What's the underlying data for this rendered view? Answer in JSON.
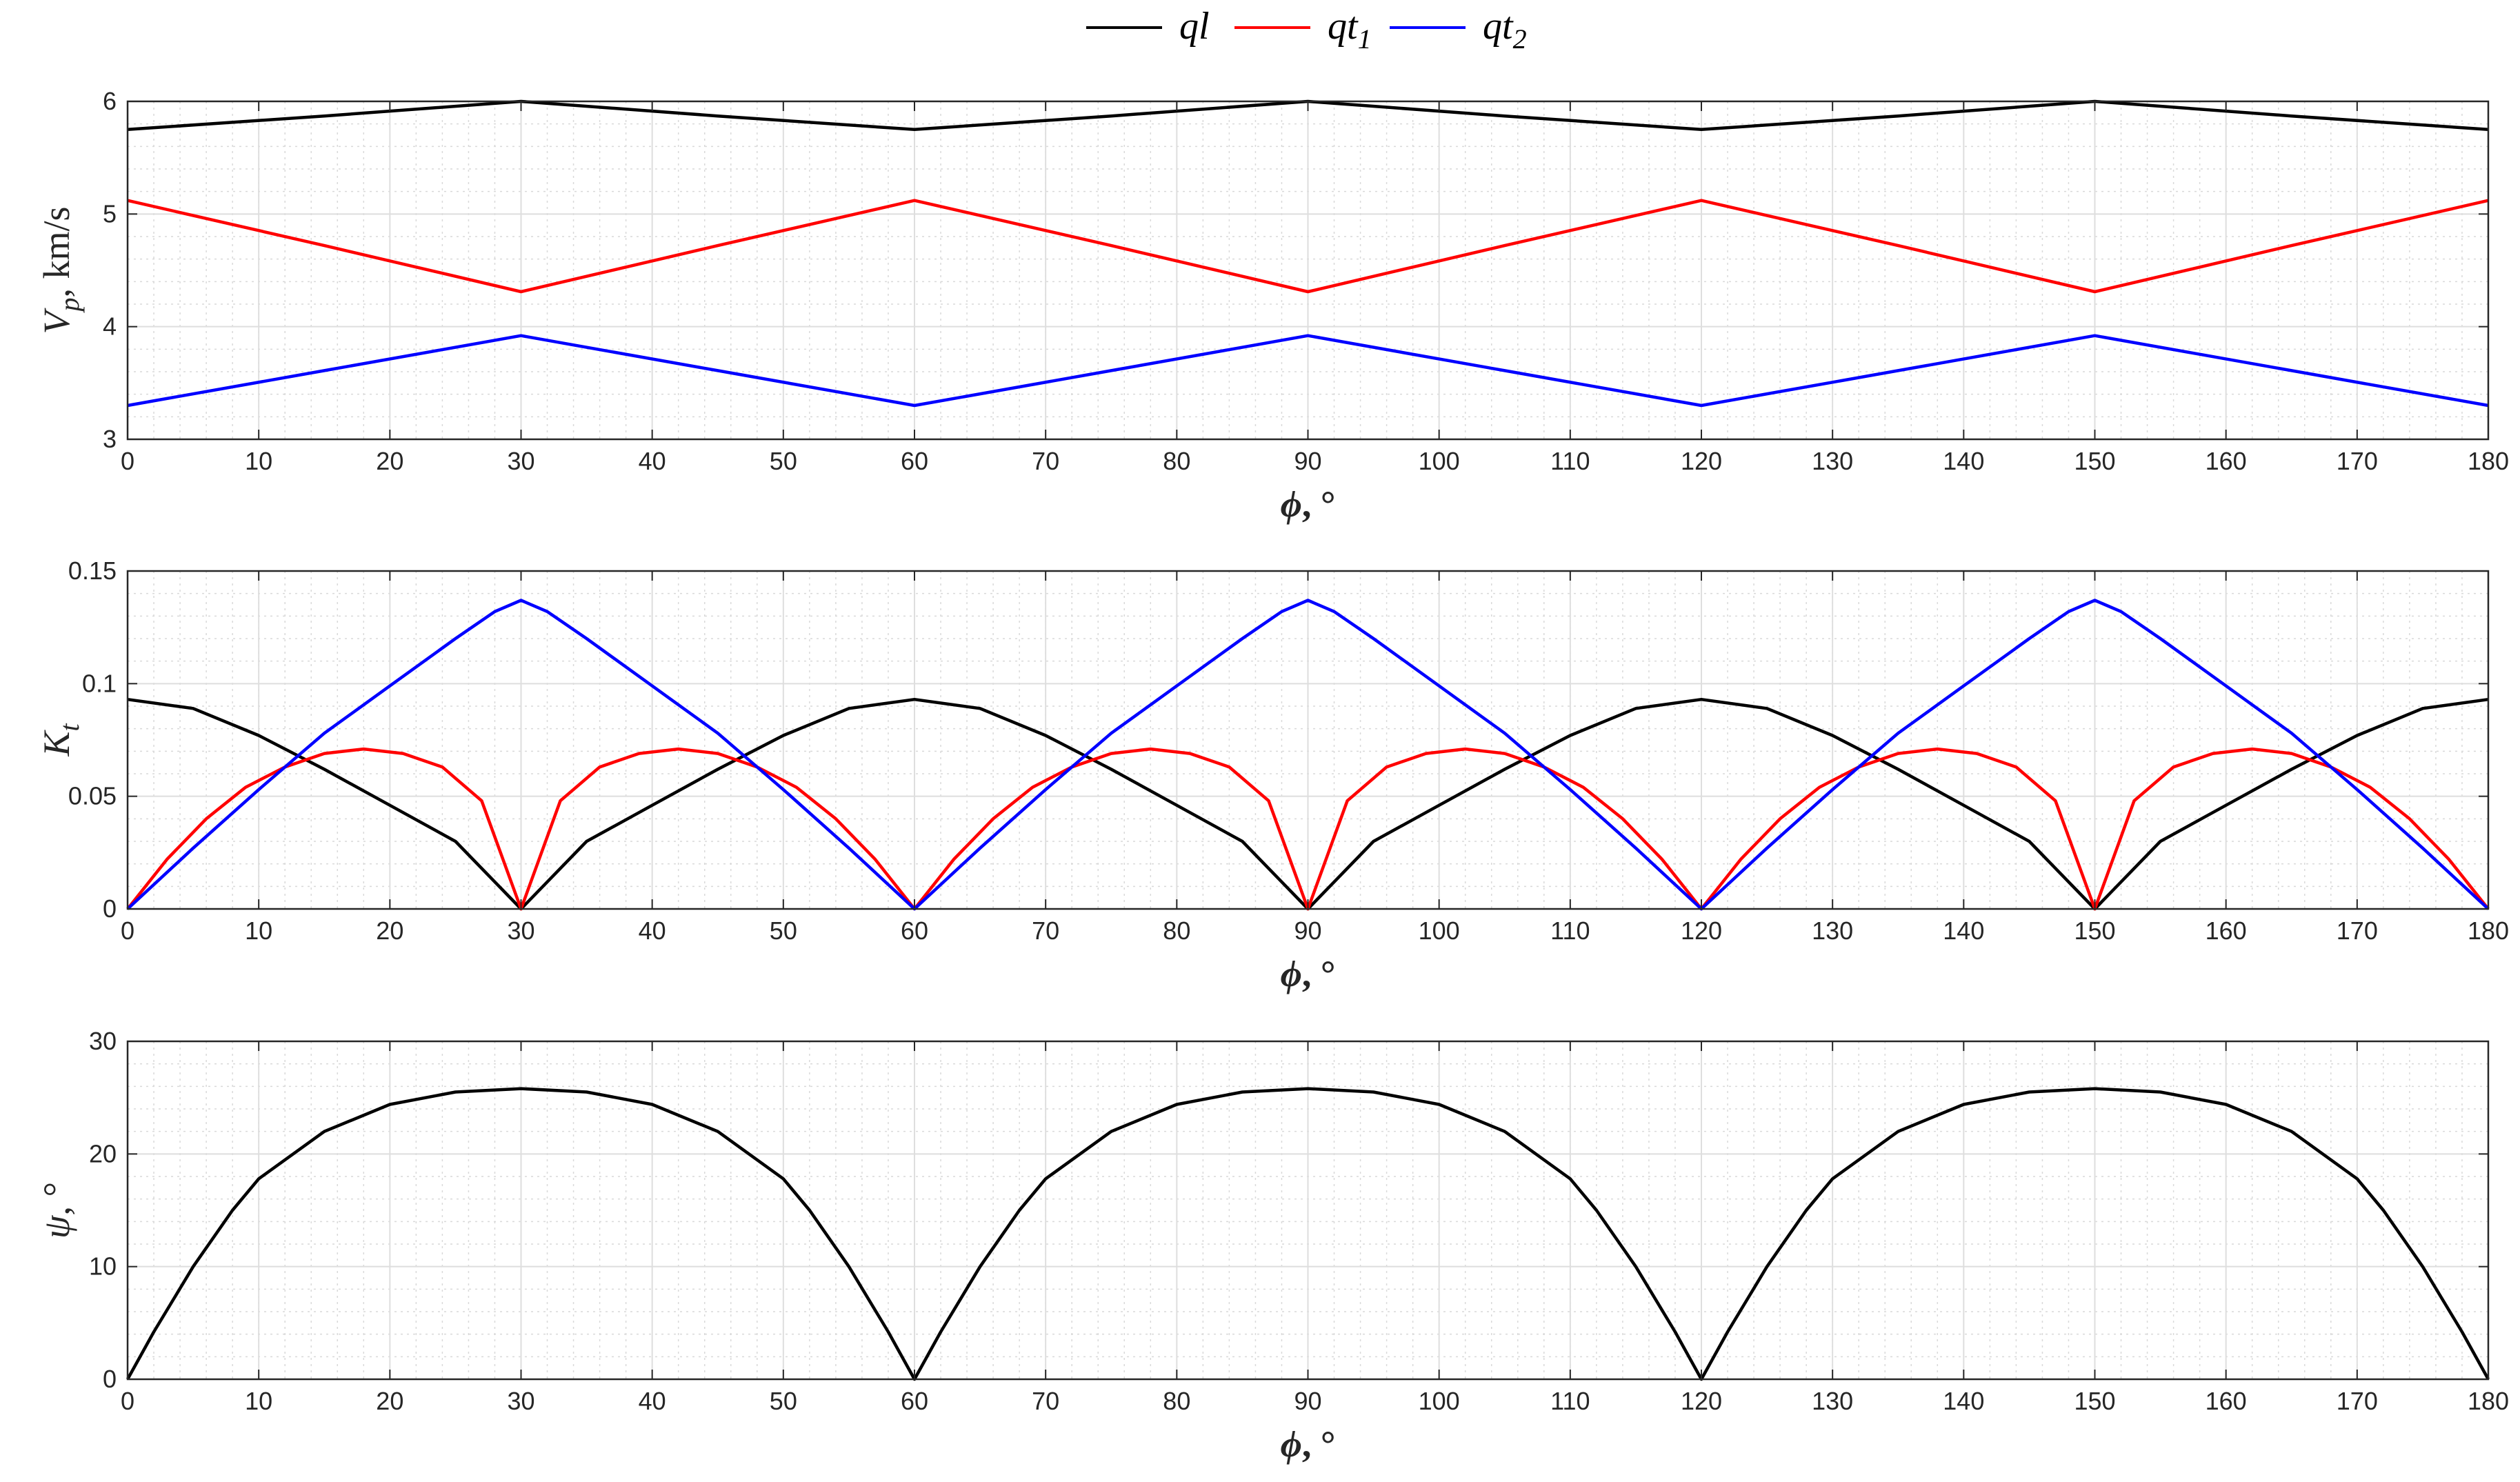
{
  "legend": [
    {
      "label": "ql",
      "sub": "",
      "color": "#000000"
    },
    {
      "label": "qt",
      "sub": "1",
      "color": "#ff0000"
    },
    {
      "label": "qt",
      "sub": "2",
      "color": "#0000ff"
    }
  ],
  "chart_data": [
    {
      "type": "line",
      "xlabel": {
        "main": "ϕ",
        "suffix": ", °"
      },
      "ylabel": {
        "main": "V",
        "sub": "p",
        "suffix": ", km/s"
      },
      "xlim": [
        0,
        180
      ],
      "ylim": [
        3,
        6
      ],
      "xticks": [
        0,
        10,
        20,
        30,
        40,
        50,
        60,
        70,
        80,
        90,
        100,
        110,
        120,
        130,
        140,
        150,
        160,
        170,
        180
      ],
      "yticks": [
        3,
        4,
        5,
        6
      ],
      "ytick_labels": [
        "3",
        "4",
        "5",
        "6"
      ],
      "grid": true,
      "minor_grid": true,
      "series": [
        {
          "name": "ql",
          "color": "#000000",
          "x": [
            0,
            15,
            30,
            45,
            60,
            75,
            90,
            105,
            120,
            135,
            150,
            165,
            180
          ],
          "y": [
            5.75,
            5.87,
            6.0,
            5.87,
            5.75,
            5.87,
            6.0,
            5.87,
            5.75,
            5.87,
            6.0,
            5.87,
            5.75
          ]
        },
        {
          "name": "qt1",
          "color": "#ff0000",
          "x": [
            0,
            15,
            30,
            45,
            60,
            75,
            90,
            105,
            120,
            135,
            150,
            165,
            180
          ],
          "y": [
            5.12,
            4.72,
            4.31,
            4.72,
            5.12,
            4.72,
            4.31,
            4.72,
            5.12,
            4.72,
            4.31,
            4.72,
            5.12
          ]
        },
        {
          "name": "qt2",
          "color": "#0000ff",
          "x": [
            0,
            15,
            30,
            45,
            60,
            75,
            90,
            105,
            120,
            135,
            150,
            165,
            180
          ],
          "y": [
            3.3,
            3.61,
            3.92,
            3.61,
            3.3,
            3.61,
            3.92,
            3.61,
            3.3,
            3.61,
            3.92,
            3.61,
            3.3
          ]
        }
      ]
    },
    {
      "type": "line",
      "xlabel": {
        "main": "ϕ",
        "suffix": ", °"
      },
      "ylabel": {
        "main": "K",
        "sub": "t",
        "suffix": ""
      },
      "xlim": [
        0,
        180
      ],
      "ylim": [
        0,
        0.15
      ],
      "xticks": [
        0,
        10,
        20,
        30,
        40,
        50,
        60,
        70,
        80,
        90,
        100,
        110,
        120,
        130,
        140,
        150,
        160,
        170,
        180
      ],
      "yticks": [
        0,
        0.05,
        0.1,
        0.15
      ],
      "ytick_labels": [
        "0",
        "0.05",
        "0.1",
        "0.15"
      ],
      "grid": true,
      "minor_grid": true,
      "series": [
        {
          "name": "ql",
          "color": "#000000",
          "x": [
            0,
            5,
            10,
            15,
            20,
            25,
            30,
            35,
            40,
            45,
            50,
            55,
            60,
            65,
            70,
            75,
            80,
            85,
            90,
            95,
            100,
            105,
            110,
            115,
            120,
            125,
            130,
            135,
            140,
            145,
            150,
            155,
            160,
            165,
            170,
            175,
            180
          ],
          "y": [
            0.093,
            0.089,
            0.077,
            0.062,
            0.046,
            0.03,
            0.0,
            0.03,
            0.046,
            0.062,
            0.077,
            0.089,
            0.093,
            0.089,
            0.077,
            0.062,
            0.046,
            0.03,
            0.0,
            0.03,
            0.046,
            0.062,
            0.077,
            0.089,
            0.093,
            0.089,
            0.077,
            0.062,
            0.046,
            0.03,
            0.0,
            0.03,
            0.046,
            0.062,
            0.077,
            0.089,
            0.093
          ]
        },
        {
          "name": "qt1",
          "color": "#ff0000",
          "x": [
            0,
            3,
            6,
            9,
            12,
            15,
            18,
            21,
            24,
            27,
            30,
            33,
            36,
            39,
            42,
            45,
            48,
            51,
            54,
            57,
            60,
            63,
            66,
            69,
            72,
            75,
            78,
            81,
            84,
            87,
            90,
            93,
            96,
            99,
            102,
            105,
            108,
            111,
            114,
            117,
            120,
            123,
            126,
            129,
            132,
            135,
            138,
            141,
            144,
            147,
            150,
            153,
            156,
            159,
            162,
            165,
            168,
            171,
            174,
            177,
            180
          ],
          "y": [
            0.0,
            0.022,
            0.04,
            0.054,
            0.063,
            0.069,
            0.071,
            0.069,
            0.063,
            0.048,
            0.0,
            0.048,
            0.063,
            0.069,
            0.071,
            0.069,
            0.063,
            0.054,
            0.04,
            0.022,
            0.0,
            0.022,
            0.04,
            0.054,
            0.063,
            0.069,
            0.071,
            0.069,
            0.063,
            0.048,
            0.0,
            0.048,
            0.063,
            0.069,
            0.071,
            0.069,
            0.063,
            0.054,
            0.04,
            0.022,
            0.0,
            0.022,
            0.04,
            0.054,
            0.063,
            0.069,
            0.071,
            0.069,
            0.063,
            0.048,
            0.0,
            0.048,
            0.063,
            0.069,
            0.071,
            0.069,
            0.063,
            0.054,
            0.04,
            0.022,
            0.0
          ]
        },
        {
          "name": "qt2",
          "color": "#0000ff",
          "x": [
            0,
            5,
            10,
            15,
            20,
            25,
            28,
            30,
            32,
            35,
            40,
            45,
            50,
            55,
            60,
            65,
            70,
            75,
            80,
            85,
            88,
            90,
            92,
            95,
            100,
            105,
            110,
            115,
            120,
            125,
            130,
            135,
            140,
            145,
            148,
            150,
            152,
            155,
            160,
            165,
            170,
            175,
            180
          ],
          "y": [
            0.0,
            0.027,
            0.053,
            0.078,
            0.099,
            0.12,
            0.132,
            0.137,
            0.132,
            0.12,
            0.099,
            0.078,
            0.053,
            0.027,
            0.0,
            0.027,
            0.053,
            0.078,
            0.099,
            0.12,
            0.132,
            0.137,
            0.132,
            0.12,
            0.099,
            0.078,
            0.053,
            0.027,
            0.0,
            0.027,
            0.053,
            0.078,
            0.099,
            0.12,
            0.132,
            0.137,
            0.132,
            0.12,
            0.099,
            0.078,
            0.053,
            0.027,
            0.0
          ]
        }
      ]
    },
    {
      "type": "line",
      "xlabel": {
        "main": "ϕ",
        "suffix": ", °"
      },
      "ylabel": {
        "main": "ψ",
        "sub": "",
        "suffix": ", °"
      },
      "xlim": [
        0,
        180
      ],
      "ylim": [
        0,
        30
      ],
      "xticks": [
        0,
        10,
        20,
        30,
        40,
        50,
        60,
        70,
        80,
        90,
        100,
        110,
        120,
        130,
        140,
        150,
        160,
        170,
        180
      ],
      "yticks": [
        0,
        10,
        20,
        30
      ],
      "ytick_labels": [
        "0",
        "10",
        "20",
        "30"
      ],
      "grid": true,
      "minor_grid": true,
      "series": [
        {
          "name": "ql",
          "color": "#000000",
          "x": [
            0,
            2,
            5,
            8,
            10,
            15,
            20,
            25,
            30,
            35,
            40,
            45,
            50,
            52,
            55,
            58,
            60,
            62,
            65,
            68,
            70,
            75,
            80,
            85,
            90,
            95,
            100,
            105,
            110,
            112,
            115,
            118,
            120,
            122,
            125,
            128,
            130,
            135,
            140,
            145,
            150,
            155,
            160,
            165,
            170,
            172,
            175,
            178,
            180
          ],
          "y": [
            0.0,
            4.2,
            10.0,
            15.0,
            17.8,
            22.0,
            24.4,
            25.5,
            25.8,
            25.5,
            24.4,
            22.0,
            17.8,
            15.0,
            10.0,
            4.2,
            0.0,
            4.2,
            10.0,
            15.0,
            17.8,
            22.0,
            24.4,
            25.5,
            25.8,
            25.5,
            24.4,
            22.0,
            17.8,
            15.0,
            10.0,
            4.2,
            0.0,
            4.2,
            10.0,
            15.0,
            17.8,
            22.0,
            24.4,
            25.5,
            25.8,
            25.5,
            24.4,
            22.0,
            17.8,
            15.0,
            10.0,
            4.2,
            0.0
          ]
        }
      ]
    }
  ]
}
